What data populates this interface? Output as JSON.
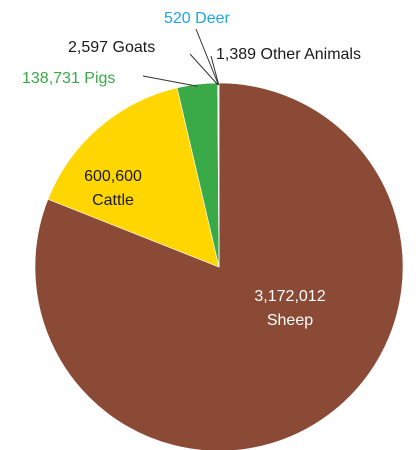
{
  "chart_data": {
    "type": "pie",
    "title": "",
    "start": "12 o'clock",
    "direction": "clockwise",
    "slices": [
      {
        "value": 3172012,
        "value_label": "3,172,012",
        "category": "Sheep",
        "color": "#8b4a35",
        "text_color": "#ffffff"
      },
      {
        "value": 600600,
        "value_label": "600,600",
        "category": "Cattle",
        "color": "#ffd600",
        "text_color": "#1a1a1a"
      },
      {
        "value": 138731,
        "value_label": "138,731",
        "category": "Pigs",
        "color": "#3aaa49",
        "text_color": "#3aaa49"
      },
      {
        "value": 2597,
        "value_label": "2,597",
        "category": "Goats",
        "color": "#111111",
        "text_color": "#1a1a1a"
      },
      {
        "value": 520,
        "value_label": "520",
        "category": "Deer",
        "color": "#1ca7e0",
        "text_color": "#1ca7e0"
      },
      {
        "value": 1389,
        "value_label": "1,389",
        "category": "Other Animals",
        "color": "#c8c8c8",
        "text_color": "#1a1a1a"
      }
    ]
  }
}
